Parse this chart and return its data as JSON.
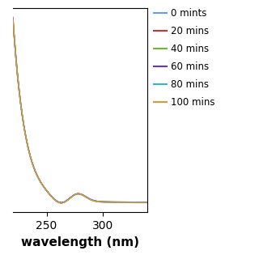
{
  "title": "",
  "xlabel": "wavelength (nm)",
  "ylabel": "",
  "xlim": [
    220,
    340
  ],
  "legend_entries": [
    "0 mints",
    "20 mins",
    "40 mins",
    "60 mins",
    "80 mins",
    "100 mins"
  ],
  "legend_colors": [
    "#6699ff",
    "#cc3333",
    "#66bb33",
    "#6633cc",
    "#33bbbb",
    "#dd9933"
  ],
  "background_color": "#ffffff",
  "xlabel_fontsize": 11,
  "xlabel_fontweight": "bold",
  "tick_fontsize": 10,
  "xticks": [
    250,
    300
  ]
}
